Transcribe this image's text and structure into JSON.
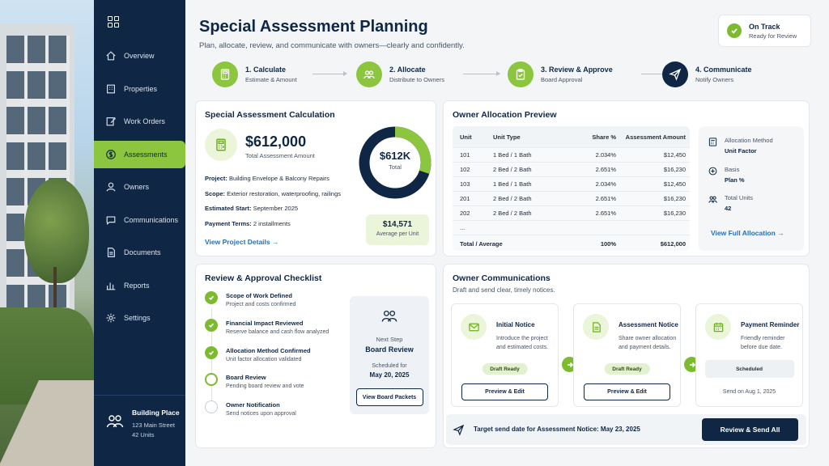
{
  "sidebar": {
    "items": [
      {
        "label": "Overview",
        "icon": "home-icon"
      },
      {
        "label": "Properties",
        "icon": "building-icon"
      },
      {
        "label": "Work Orders",
        "icon": "edit-icon"
      },
      {
        "label": "Assessments",
        "icon": "dollar-icon",
        "active": true
      },
      {
        "label": "Owners",
        "icon": "user-icon"
      },
      {
        "label": "Communications",
        "icon": "chat-icon"
      },
      {
        "label": "Documents",
        "icon": "document-icon"
      },
      {
        "label": "Reports",
        "icon": "chart-icon"
      },
      {
        "label": "Settings",
        "icon": "gear-icon"
      }
    ],
    "building": {
      "name": "Building Place",
      "address": "123 Main Street",
      "units": "42 Units"
    }
  },
  "header": {
    "title": "Special Assessment Planning",
    "subtitle": "Plan, allocate, review, and communicate with owners—clearly and confidently.",
    "status_title": "On Track",
    "status_sub": "Ready for Review"
  },
  "steps": [
    {
      "title": "1. Calculate",
      "sub": "Estimate & Amount"
    },
    {
      "title": "2. Allocate",
      "sub": "Distribute to Owners"
    },
    {
      "title": "3. Review & Approve",
      "sub": "Board Approval"
    },
    {
      "title": "4. Communicate",
      "sub": "Notify Owners"
    }
  ],
  "calc": {
    "title": "Special Assessment Calculation",
    "amount": "$612,000",
    "amount_label": "Total Assessment Amount",
    "project_k": "Project:",
    "project_v": "Building Envelope & Balcony Repairs",
    "scope_k": "Scope:",
    "scope_v": "Exterior restoration, waterproofing, railings",
    "start_k": "Estimated Start:",
    "start_v": "September 2025",
    "terms_k": "Payment Terms:",
    "terms_v": "2 installments",
    "link": "View Project Details",
    "donut_value": "$612K",
    "donut_label": "Total",
    "donut_fraction": 0.3,
    "avg_value": "$14,571",
    "avg_label": "Average per Unit"
  },
  "allocation": {
    "title": "Owner Allocation Preview",
    "headers": [
      "Unit",
      "Unit Type",
      "Share %",
      "Assessment Amount"
    ],
    "rows": [
      [
        "101",
        "1 Bed / 1 Bath",
        "2.034%",
        "$12,450"
      ],
      [
        "102",
        "2 Bed / 2 Bath",
        "2.651%",
        "$16,230"
      ],
      [
        "103",
        "1 Bed / 1 Bath",
        "2.034%",
        "$12,450"
      ],
      [
        "201",
        "2 Bed / 2 Bath",
        "2.651%",
        "$16,230"
      ],
      [
        "202",
        "2 Bed / 2 Bath",
        "2.651%",
        "$16,230"
      ],
      [
        "...",
        "",
        "",
        ""
      ]
    ],
    "total": [
      "Total / Average",
      "",
      "100%",
      "$612,000"
    ],
    "method_k": "Allocation Method",
    "method_v": "Unit Factor",
    "basis_k": "Basis",
    "basis_v": "Plan %",
    "units_k": "Total Units",
    "units_v": "42",
    "link": "View Full Allocation"
  },
  "checklist": {
    "title": "Review & Approval Checklist",
    "items": [
      {
        "title": "Scope of Work Defined",
        "sub": "Project and costs confirmed",
        "state": "done"
      },
      {
        "title": "Financial Impact Reviewed",
        "sub": "Reserve balance and cash flow analyzed",
        "state": "done"
      },
      {
        "title": "Allocation Method Confirmed",
        "sub": "Unit factor allocation validated",
        "state": "done"
      },
      {
        "title": "Board Review",
        "sub": "Pending board review and vote",
        "state": "current"
      },
      {
        "title": "Owner Notification",
        "sub": "Send notices upon approval",
        "state": "todo"
      }
    ],
    "next_label": "Next Step",
    "next_title": "Board Review",
    "sched_label": "Scheduled for",
    "sched_date": "May 20, 2025",
    "next_button": "View Board Packets"
  },
  "communications": {
    "title": "Owner Communications",
    "subtitle": "Draft and send clear, timely notices.",
    "notices": [
      {
        "title": "Initial Notice",
        "desc": "Introduce the project and estimated costs.",
        "badge": "Draft Ready",
        "button": "Preview & Edit"
      },
      {
        "title": "Assessment Notice",
        "desc": "Share owner allocation and payment details.",
        "badge": "Draft Ready",
        "button": "Preview & Edit"
      },
      {
        "title": "Payment Reminder",
        "desc": "Friendly reminder before due date.",
        "badge": "Scheduled",
        "send_on": "Send on Aug 1, 2025"
      }
    ],
    "target_text": "Target send date for Assessment Notice: May 23, 2025",
    "send_button": "Review & Send All"
  },
  "colors": {
    "accent": "#8cc63f",
    "navy": "#0f2744",
    "link": "#1f6fc4"
  }
}
